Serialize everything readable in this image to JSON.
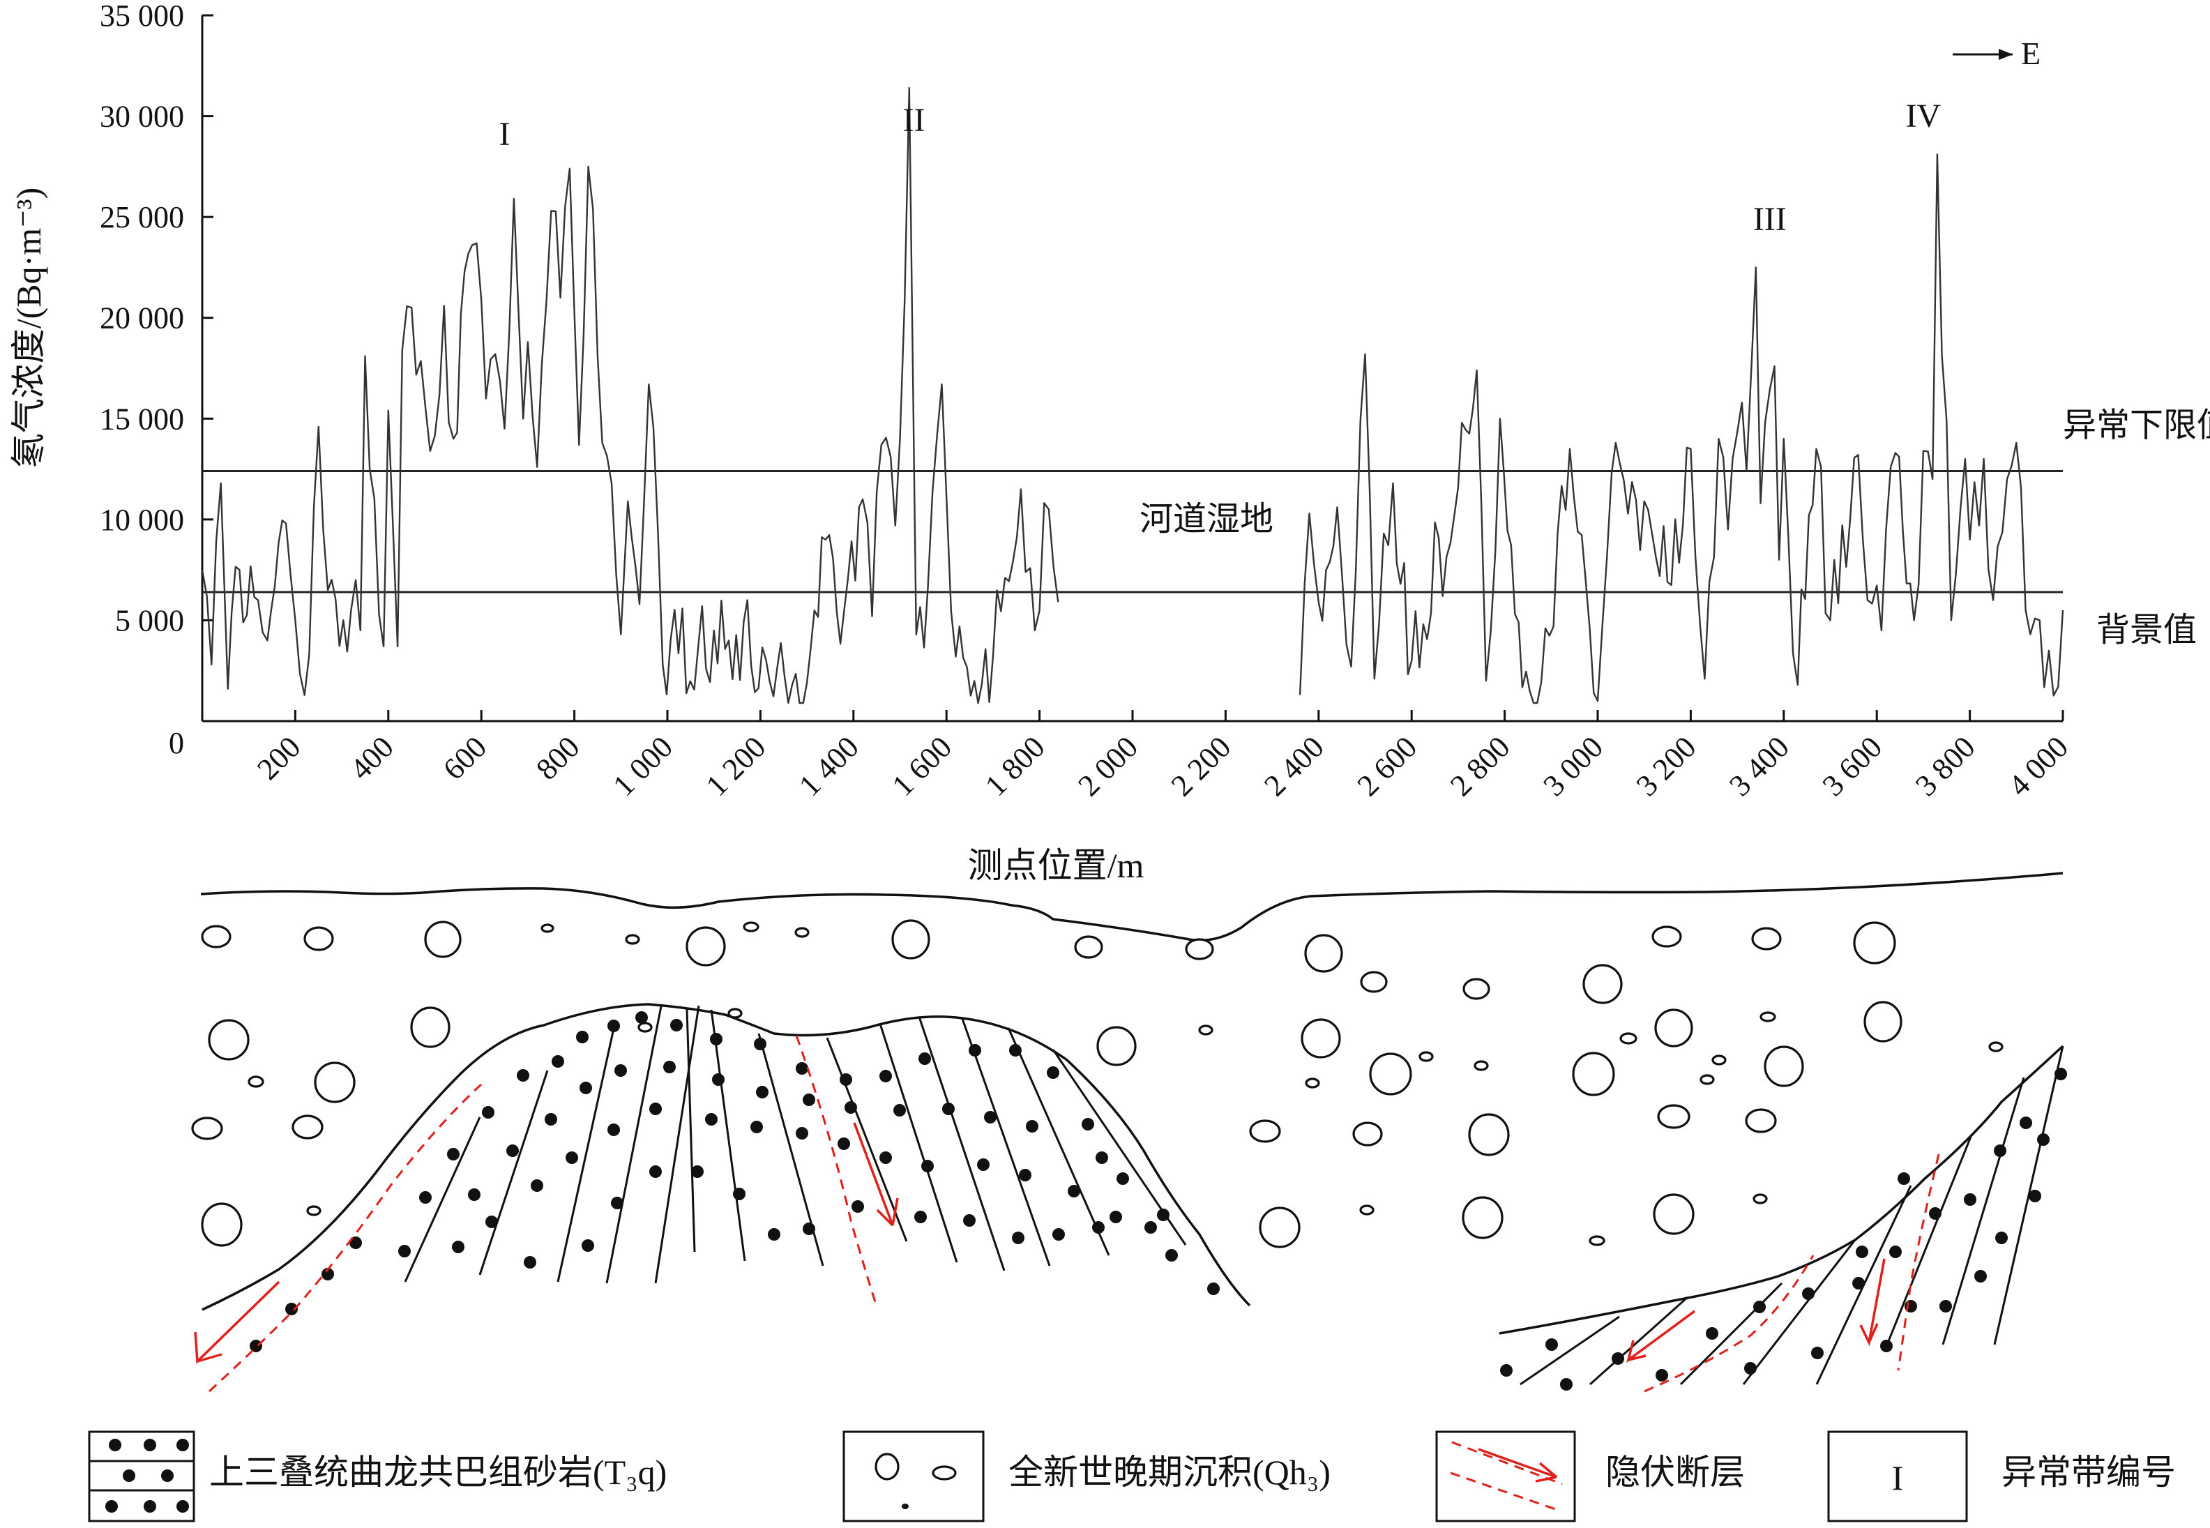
{
  "chart_data": {
    "type": "line",
    "ylabel": "氡气浓度/(Bq·m⁻³)",
    "xlabel": "测点位置/m",
    "xlim": [
      0,
      4000
    ],
    "ylim": [
      0,
      35000
    ],
    "x_tick_labels": [
      "200",
      "400",
      "600",
      "800",
      "1 000",
      "1 200",
      "1 400",
      "1 600",
      "1 800",
      "2 000",
      "2 200",
      "2 400",
      "2 600",
      "2 800",
      "3 000",
      "3 200",
      "3 400",
      "3 600",
      "3 800",
      "4 000"
    ],
    "y_tick_labels": [
      "0",
      "5 000",
      "10 000",
      "15 000",
      "20 000",
      "25 000",
      "30 000",
      "35 000"
    ],
    "direction_label": "E",
    "reference_lines": [
      {
        "name": "异常下限值",
        "value": 12400
      },
      {
        "name": "背景值",
        "value": 6400
      }
    ],
    "gap_label": "河道湿地",
    "anomaly_zones": [
      {
        "label": "I",
        "x": 650
      },
      {
        "label": "II",
        "x": 1530
      },
      {
        "label": "III",
        "x": 3370
      },
      {
        "label": "IV",
        "x": 3700
      }
    ],
    "series": [
      {
        "segment": 1,
        "x_range": [
          0,
          1840
        ],
        "anchor_points": [
          [
            0,
            7500
          ],
          [
            20,
            2800
          ],
          [
            40,
            11800
          ],
          [
            55,
            1600
          ],
          [
            80,
            7500
          ],
          [
            120,
            6000
          ],
          [
            140,
            4000
          ],
          [
            180,
            9800
          ],
          [
            200,
            5000
          ],
          [
            230,
            3300
          ],
          [
            250,
            14600
          ],
          [
            270,
            6500
          ],
          [
            320,
            5500
          ],
          [
            340,
            4500
          ],
          [
            350,
            18100
          ],
          [
            380,
            5300
          ],
          [
            390,
            3700
          ],
          [
            400,
            15400
          ],
          [
            420,
            3700
          ],
          [
            430,
            18400
          ],
          [
            450,
            20500
          ],
          [
            480,
            15500
          ],
          [
            510,
            16200
          ],
          [
            520,
            20600
          ],
          [
            540,
            14000
          ],
          [
            580,
            23600
          ],
          [
            590,
            23700
          ],
          [
            610,
            16000
          ],
          [
            630,
            18200
          ],
          [
            650,
            14500
          ],
          [
            670,
            25900
          ],
          [
            690,
            15000
          ],
          [
            700,
            18800
          ],
          [
            720,
            12600
          ],
          [
            750,
            25300
          ],
          [
            770,
            21000
          ],
          [
            790,
            27400
          ],
          [
            810,
            13700
          ],
          [
            830,
            27500
          ],
          [
            860,
            13800
          ],
          [
            880,
            11800
          ],
          [
            900,
            4300
          ],
          [
            915,
            10900
          ],
          [
            940,
            5800
          ],
          [
            960,
            16700
          ],
          [
            980,
            9200
          ],
          [
            990,
            2800
          ],
          [
            1100,
            4500
          ],
          [
            1300,
            1900
          ],
          [
            1340,
            9000
          ],
          [
            1380,
            5500
          ],
          [
            1420,
            11000
          ],
          [
            1440,
            5200
          ],
          [
            1460,
            13700
          ],
          [
            1490,
            9700
          ],
          [
            1500,
            14000
          ],
          [
            1520,
            31400
          ],
          [
            1535,
            4300
          ],
          [
            1560,
            6600
          ],
          [
            1590,
            16700
          ],
          [
            1620,
            3200
          ],
          [
            1700,
            3200
          ],
          [
            1760,
            11500
          ],
          [
            1790,
            4500
          ],
          [
            1820,
            10500
          ],
          [
            1840,
            5900
          ]
        ]
      },
      {
        "segment": 2,
        "x_range": [
          2360,
          4000
        ],
        "anchor_points": [
          [
            2360,
            1300
          ],
          [
            2380,
            10300
          ],
          [
            2400,
            5900
          ],
          [
            2440,
            10600
          ],
          [
            2470,
            2700
          ],
          [
            2480,
            7500
          ],
          [
            2500,
            18200
          ],
          [
            2520,
            2100
          ],
          [
            2540,
            9300
          ],
          [
            2560,
            11800
          ],
          [
            2600,
            3000
          ],
          [
            2700,
            11600
          ],
          [
            2740,
            17400
          ],
          [
            2760,
            2000
          ],
          [
            2790,
            15000
          ],
          [
            2830,
            4900
          ],
          [
            2870,
            900
          ],
          [
            2940,
            13500
          ],
          [
            3000,
            1000
          ],
          [
            3030,
            12300
          ],
          [
            3100,
            10900
          ],
          [
            3150,
            6900
          ],
          [
            3200,
            13500
          ],
          [
            3230,
            2100
          ],
          [
            3260,
            14000
          ],
          [
            3280,
            9500
          ],
          [
            3310,
            15800
          ],
          [
            3320,
            12400
          ],
          [
            3340,
            22500
          ],
          [
            3350,
            10800
          ],
          [
            3380,
            17600
          ],
          [
            3390,
            8000
          ],
          [
            3400,
            14000
          ],
          [
            3430,
            1800
          ],
          [
            3470,
            13500
          ],
          [
            3500,
            5000
          ],
          [
            3560,
            13200
          ],
          [
            3580,
            6000
          ],
          [
            3610,
            4500
          ],
          [
            3640,
            13300
          ],
          [
            3680,
            5000
          ],
          [
            3700,
            13400
          ],
          [
            3720,
            12000
          ],
          [
            3730,
            28100
          ],
          [
            3760,
            5000
          ],
          [
            3790,
            13000
          ],
          [
            3800,
            9000
          ],
          [
            3830,
            13000
          ],
          [
            3850,
            6000
          ],
          [
            3880,
            12000
          ],
          [
            3900,
            13800
          ],
          [
            3920,
            5500
          ],
          [
            3950,
            5000
          ],
          [
            3970,
            3500
          ],
          [
            3990,
            1700
          ],
          [
            4000,
            5500
          ]
        ]
      }
    ]
  },
  "legend": [
    {
      "label": "上三叠统曲龙共巴组砂岩(T₃q)"
    },
    {
      "label": "全新世晚期沉积(Qh₃)"
    },
    {
      "label": "隐伏断层"
    },
    {
      "label": "异常带编号",
      "symbol": "I"
    }
  ]
}
